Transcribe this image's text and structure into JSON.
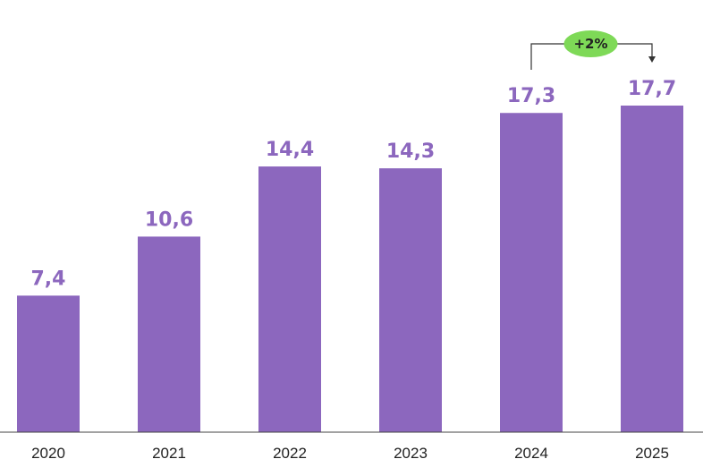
{
  "chart_data": {
    "type": "bar",
    "categories": [
      "2020",
      "2021",
      "2022",
      "2023",
      "2024",
      "2025"
    ],
    "values": [
      7.4,
      10.6,
      14.4,
      14.3,
      17.3,
      17.7
    ],
    "value_labels": [
      "7,4",
      "10,6",
      "14,4",
      "14,3",
      "17,3",
      "17,7"
    ],
    "title": "",
    "xlabel": "",
    "ylabel": "",
    "ylim": [
      0,
      17.7
    ],
    "grid": false,
    "bar_color": "#8C67BE",
    "annotation": {
      "text": "+2%",
      "from": "2024",
      "to": "2025",
      "color": "#7ED957"
    }
  }
}
